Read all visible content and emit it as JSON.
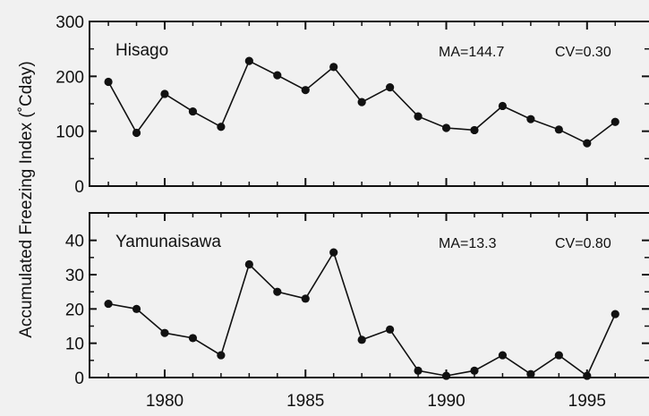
{
  "chart_data": [
    {
      "type": "line",
      "panel_label": "Hisago",
      "ma_text": "MA=144.7",
      "cv_text": "CV=0.30",
      "x": [
        1978,
        1979,
        1980,
        1981,
        1982,
        1983,
        1984,
        1985,
        1986,
        1987,
        1988,
        1989,
        1990,
        1991,
        1992,
        1993,
        1994,
        1995,
        1996
      ],
      "values": [
        190,
        97,
        168,
        136,
        108,
        228,
        202,
        175,
        217,
        153,
        180,
        127,
        106,
        102,
        146,
        122,
        103,
        78,
        117
      ],
      "ylim": [
        0,
        300
      ],
      "yticks": [
        0,
        100,
        200,
        300
      ]
    },
    {
      "type": "line",
      "panel_label": "Yamunaisawa",
      "ma_text": "MA=13.3",
      "cv_text": "CV=0.80",
      "x": [
        1978,
        1979,
        1980,
        1981,
        1982,
        1983,
        1984,
        1985,
        1986,
        1987,
        1988,
        1989,
        1990,
        1991,
        1992,
        1993,
        1994,
        1995,
        1996
      ],
      "values": [
        21.5,
        20,
        13,
        11.5,
        6.5,
        33,
        25,
        23,
        36.5,
        11,
        14,
        2,
        0.5,
        2,
        6.5,
        1,
        6.5,
        0.5,
        18.5
      ],
      "ylim": [
        0,
        48
      ],
      "yticks": [
        0,
        10,
        20,
        30,
        40
      ]
    }
  ],
  "xticks": [
    1980,
    1985,
    1990,
    1995
  ],
  "ylabel": "Accumulated Freezing Index (˚Cday)"
}
